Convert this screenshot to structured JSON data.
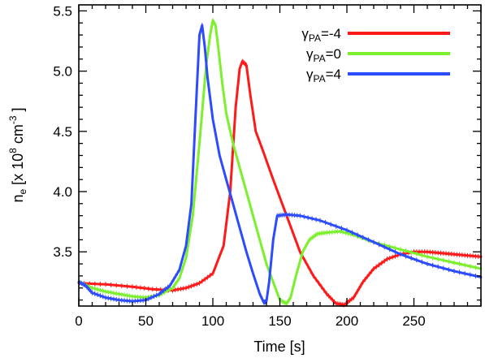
{
  "chart_data": {
    "type": "line",
    "title": "",
    "xlabel": "Time [s]",
    "ylabel_parts": {
      "n": "n",
      "e_sub": "e",
      "bracket_open": " [x 10",
      "exp8": "8",
      "cm": " cm",
      "exp_m3": "-3",
      "bracket_close": " ]"
    },
    "xlim": [
      0,
      300
    ],
    "ylim": [
      3.05,
      5.55
    ],
    "x_ticks": [
      {
        "value": 0,
        "label": "0"
      },
      {
        "value": 50,
        "label": "50"
      },
      {
        "value": 100,
        "label": "100"
      },
      {
        "value": 150,
        "label": "150"
      },
      {
        "value": 200,
        "label": "200"
      },
      {
        "value": 250,
        "label": "250"
      }
    ],
    "y_ticks": [
      {
        "value": 3.5,
        "label": "3.5"
      },
      {
        "value": 4.0,
        "label": "4.0"
      },
      {
        "value": 4.5,
        "label": "4.5"
      },
      {
        "value": 5.0,
        "label": "5.0"
      },
      {
        "value": 5.5,
        "label": "5.5"
      }
    ],
    "legend_position": "top-right",
    "grid": false,
    "series": [
      {
        "legend_main": "γ",
        "legend_sub": "PA",
        "legend_value": "=-4",
        "color": "#ff1a1a",
        "x": [
          0,
          20,
          40,
          55,
          70,
          80,
          90,
          100,
          108,
          113,
          117,
          120,
          122,
          125,
          128,
          132,
          137,
          145,
          155,
          165,
          175,
          185,
          192,
          198,
          205,
          212,
          220,
          230,
          240,
          250,
          260,
          270,
          280,
          290,
          300
        ],
        "y": [
          3.24,
          3.23,
          3.21,
          3.19,
          3.18,
          3.2,
          3.24,
          3.32,
          3.55,
          4.0,
          4.7,
          5.02,
          5.08,
          5.05,
          4.8,
          4.5,
          4.35,
          4.1,
          3.8,
          3.5,
          3.3,
          3.15,
          3.07,
          3.06,
          3.12,
          3.25,
          3.36,
          3.44,
          3.48,
          3.5,
          3.5,
          3.49,
          3.48,
          3.47,
          3.46
        ]
      },
      {
        "legend_main": "γ",
        "legend_sub": "PA",
        "legend_value": "=0",
        "color": "#7cf02c",
        "x": [
          0,
          10,
          20,
          30,
          40,
          50,
          60,
          70,
          75,
          80,
          85,
          90,
          95,
          98,
          100,
          102,
          104,
          107,
          110,
          115,
          120,
          130,
          140,
          150,
          155,
          158,
          162,
          167,
          172,
          178,
          185,
          195,
          205,
          220,
          240,
          260,
          280,
          300
        ],
        "y": [
          3.25,
          3.2,
          3.17,
          3.15,
          3.13,
          3.12,
          3.14,
          3.2,
          3.28,
          3.45,
          3.8,
          4.4,
          5.05,
          5.3,
          5.42,
          5.38,
          5.2,
          4.9,
          4.65,
          4.4,
          4.2,
          3.8,
          3.4,
          3.1,
          3.07,
          3.12,
          3.3,
          3.5,
          3.6,
          3.65,
          3.66,
          3.67,
          3.64,
          3.58,
          3.52,
          3.46,
          3.41,
          3.36
        ]
      },
      {
        "legend_main": "γ",
        "legend_sub": "PA",
        "legend_value": "=4",
        "color": "#2d4bff",
        "x": [
          0,
          5,
          10,
          20,
          30,
          40,
          50,
          60,
          68,
          75,
          80,
          84,
          87,
          90,
          92,
          94,
          96,
          100,
          105,
          110,
          115,
          120,
          125,
          130,
          135,
          138,
          140,
          142,
          145,
          148,
          155,
          165,
          180,
          200,
          220,
          240,
          260,
          280,
          300
        ],
        "y": [
          3.25,
          3.22,
          3.16,
          3.12,
          3.1,
          3.09,
          3.1,
          3.15,
          3.22,
          3.35,
          3.55,
          3.9,
          4.6,
          5.3,
          5.38,
          5.2,
          4.95,
          4.6,
          4.3,
          4.1,
          3.9,
          3.7,
          3.5,
          3.32,
          3.15,
          3.08,
          3.09,
          3.25,
          3.6,
          3.8,
          3.81,
          3.8,
          3.76,
          3.68,
          3.58,
          3.48,
          3.4,
          3.34,
          3.29
        ]
      }
    ]
  }
}
